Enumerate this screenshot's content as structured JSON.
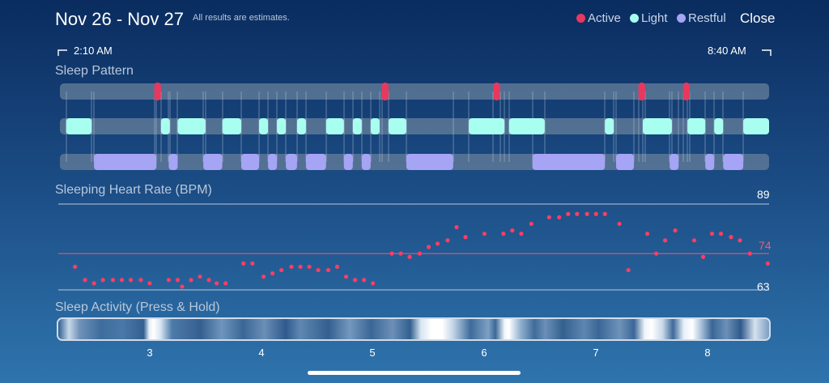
{
  "header": {
    "title": "Nov 26 - Nov 27",
    "subtitle": "All results are estimates.",
    "close_label": "Close"
  },
  "legend": [
    {
      "label": "Active",
      "color": "#e8385e"
    },
    {
      "label": "Light",
      "color": "#a8fff0"
    },
    {
      "label": "Restful",
      "color": "#a6a4f5"
    }
  ],
  "time_range": {
    "start": "2:10 AM",
    "end": "8:40 AM"
  },
  "sleep_pattern": {
    "label": "Sleep Pattern",
    "active": [
      [
        3.04,
        3.1
      ],
      [
        5.08,
        5.14
      ],
      [
        6.08,
        6.14
      ],
      [
        7.38,
        7.44
      ],
      [
        7.78,
        7.84
      ]
    ],
    "light": [
      [
        2.25,
        2.48
      ],
      [
        3.1,
        3.18
      ],
      [
        3.25,
        3.5
      ],
      [
        3.65,
        3.82
      ],
      [
        3.98,
        4.06
      ],
      [
        4.14,
        4.22
      ],
      [
        4.32,
        4.4
      ],
      [
        4.58,
        4.74
      ],
      [
        4.82,
        4.9
      ],
      [
        4.98,
        5.06
      ],
      [
        5.14,
        5.3
      ],
      [
        5.86,
        6.18
      ],
      [
        6.22,
        6.54
      ],
      [
        7.08,
        7.16
      ],
      [
        7.42,
        7.68
      ],
      [
        7.82,
        7.98
      ],
      [
        8.06,
        8.14
      ],
      [
        8.32,
        8.56
      ]
    ],
    "restful": [
      [
        2.5,
        3.06
      ],
      [
        3.17,
        3.25
      ],
      [
        3.48,
        3.65
      ],
      [
        3.82,
        3.98
      ],
      [
        4.06,
        4.14
      ],
      [
        4.22,
        4.32
      ],
      [
        4.4,
        4.58
      ],
      [
        4.74,
        4.82
      ],
      [
        4.9,
        4.98
      ],
      [
        5.3,
        5.72
      ],
      [
        6.43,
        7.08
      ],
      [
        7.18,
        7.34
      ],
      [
        7.66,
        7.74
      ],
      [
        7.98,
        8.06
      ],
      [
        8.14,
        8.32
      ]
    ]
  },
  "heart_rate": {
    "label": "Sleeping Heart Rate (BPM)",
    "max": "89",
    "avg": "74",
    "min": "63",
    "points": [
      [
        2.33,
        70
      ],
      [
        2.42,
        66
      ],
      [
        2.5,
        65
      ],
      [
        2.58,
        66
      ],
      [
        2.67,
        66
      ],
      [
        2.75,
        66
      ],
      [
        2.83,
        66
      ],
      [
        2.92,
        66
      ],
      [
        3.0,
        65
      ],
      [
        3.17,
        66
      ],
      [
        3.25,
        66
      ],
      [
        3.29,
        64
      ],
      [
        3.37,
        66
      ],
      [
        3.45,
        67
      ],
      [
        3.53,
        66
      ],
      [
        3.6,
        65
      ],
      [
        3.68,
        65
      ],
      [
        3.84,
        71
      ],
      [
        3.92,
        71
      ],
      [
        4.02,
        67
      ],
      [
        4.1,
        68
      ],
      [
        4.18,
        69
      ],
      [
        4.27,
        70
      ],
      [
        4.35,
        70
      ],
      [
        4.43,
        70
      ],
      [
        4.51,
        69
      ],
      [
        4.6,
        69
      ],
      [
        4.68,
        70
      ],
      [
        4.76,
        67
      ],
      [
        4.84,
        66
      ],
      [
        4.92,
        66
      ],
      [
        5.0,
        65
      ],
      [
        5.17,
        74
      ],
      [
        5.25,
        74
      ],
      [
        5.33,
        73
      ],
      [
        5.42,
        74
      ],
      [
        5.5,
        76
      ],
      [
        5.58,
        77
      ],
      [
        5.67,
        78
      ],
      [
        5.75,
        82
      ],
      [
        5.83,
        79
      ],
      [
        6.0,
        80
      ],
      [
        6.17,
        80
      ],
      [
        6.25,
        81
      ],
      [
        6.33,
        80
      ],
      [
        6.42,
        83
      ],
      [
        6.58,
        85
      ],
      [
        6.67,
        85
      ],
      [
        6.75,
        86
      ],
      [
        6.83,
        86
      ],
      [
        6.92,
        86
      ],
      [
        7.0,
        86
      ],
      [
        7.08,
        86
      ],
      [
        7.21,
        83
      ],
      [
        7.29,
        69
      ],
      [
        7.46,
        80
      ],
      [
        7.54,
        74
      ],
      [
        7.62,
        78
      ],
      [
        7.71,
        81
      ],
      [
        7.88,
        78
      ],
      [
        7.96,
        73
      ],
      [
        8.04,
        80
      ],
      [
        8.12,
        80
      ],
      [
        8.21,
        79
      ],
      [
        8.29,
        78
      ],
      [
        8.38,
        74
      ],
      [
        8.54,
        71
      ]
    ]
  },
  "sleep_activity": {
    "label": "Sleep Activity (Press & Hold)"
  },
  "x_axis": {
    "ticks": [
      "3",
      "4",
      "5",
      "6",
      "7",
      "8"
    ]
  }
}
